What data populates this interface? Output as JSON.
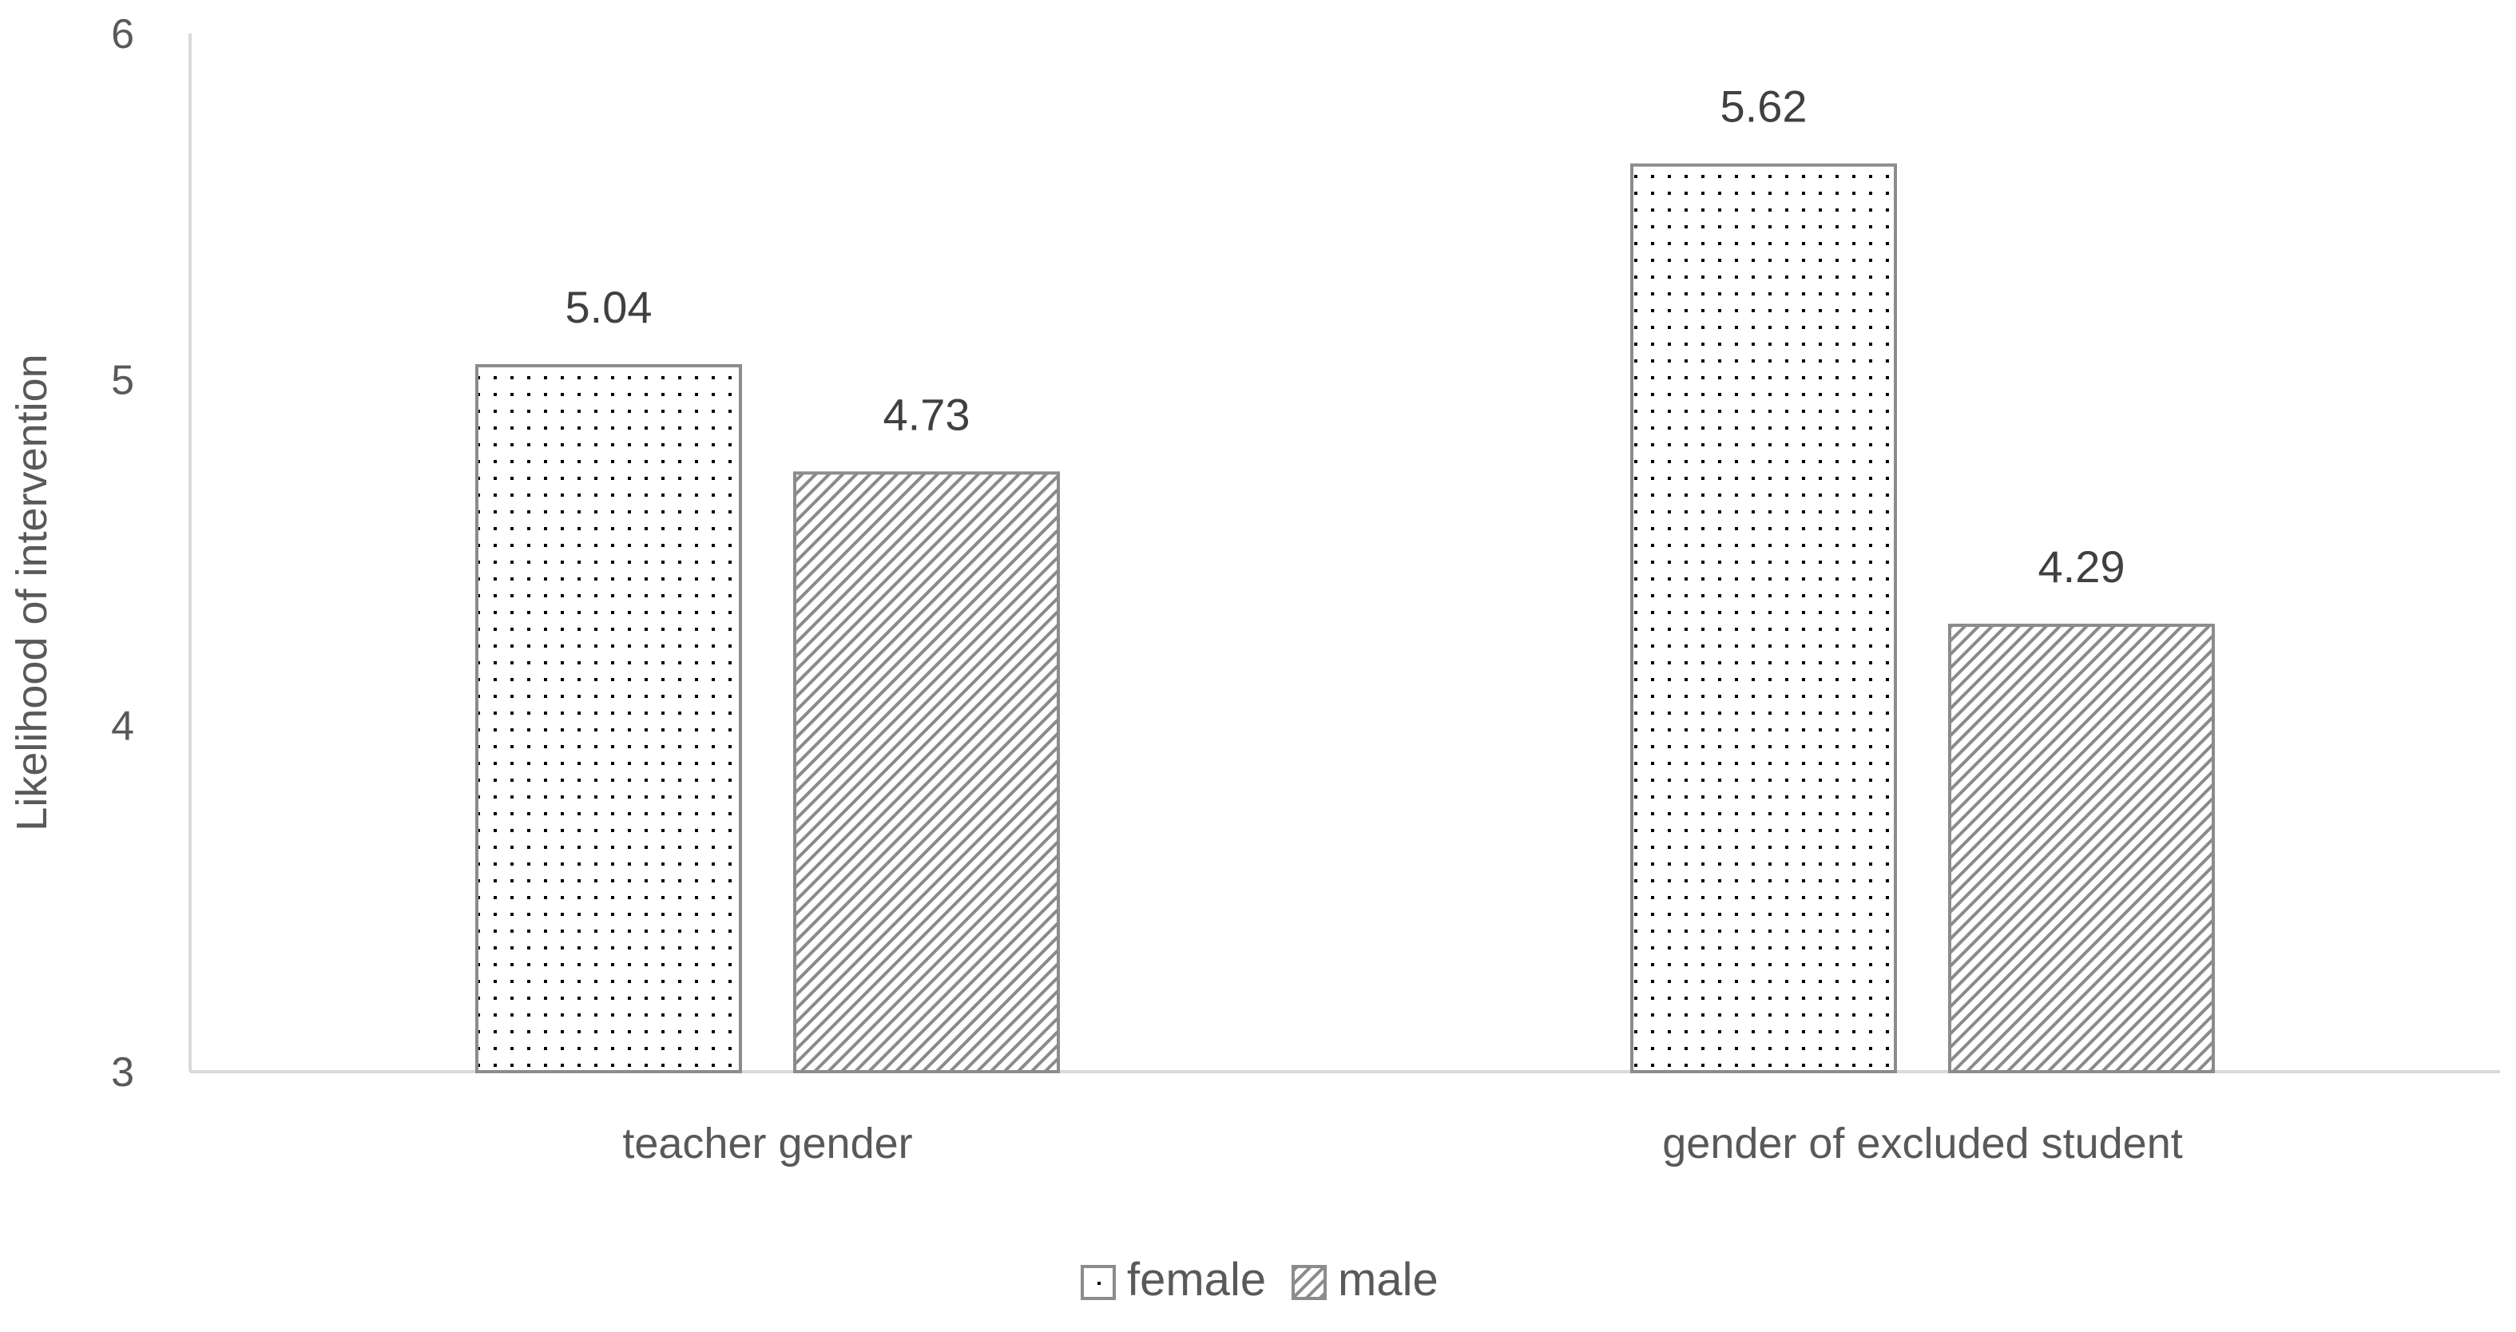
{
  "chart_data": {
    "type": "bar",
    "title": "",
    "xlabel": "",
    "ylabel": "Likelihood of intervention",
    "ylim": [
      3,
      6
    ],
    "yticks": [
      3,
      4,
      5,
      6
    ],
    "categories": [
      "teacher gender",
      "gender of excluded student"
    ],
    "series": [
      {
        "name": "female",
        "pattern": "dots",
        "values": [
          5.04,
          5.62
        ],
        "labels": [
          "5.04",
          "5.62"
        ]
      },
      {
        "name": "male",
        "pattern": "diagonal",
        "values": [
          4.73,
          4.29
        ],
        "labels": [
          "4.73",
          "4.29"
        ]
      }
    ],
    "grid": false,
    "legend": "bottom-center",
    "colors": {
      "bar_stroke": "#8c8c8c",
      "axis": "#d9d9d9",
      "text": "#595959",
      "pattern": "#000000"
    }
  }
}
